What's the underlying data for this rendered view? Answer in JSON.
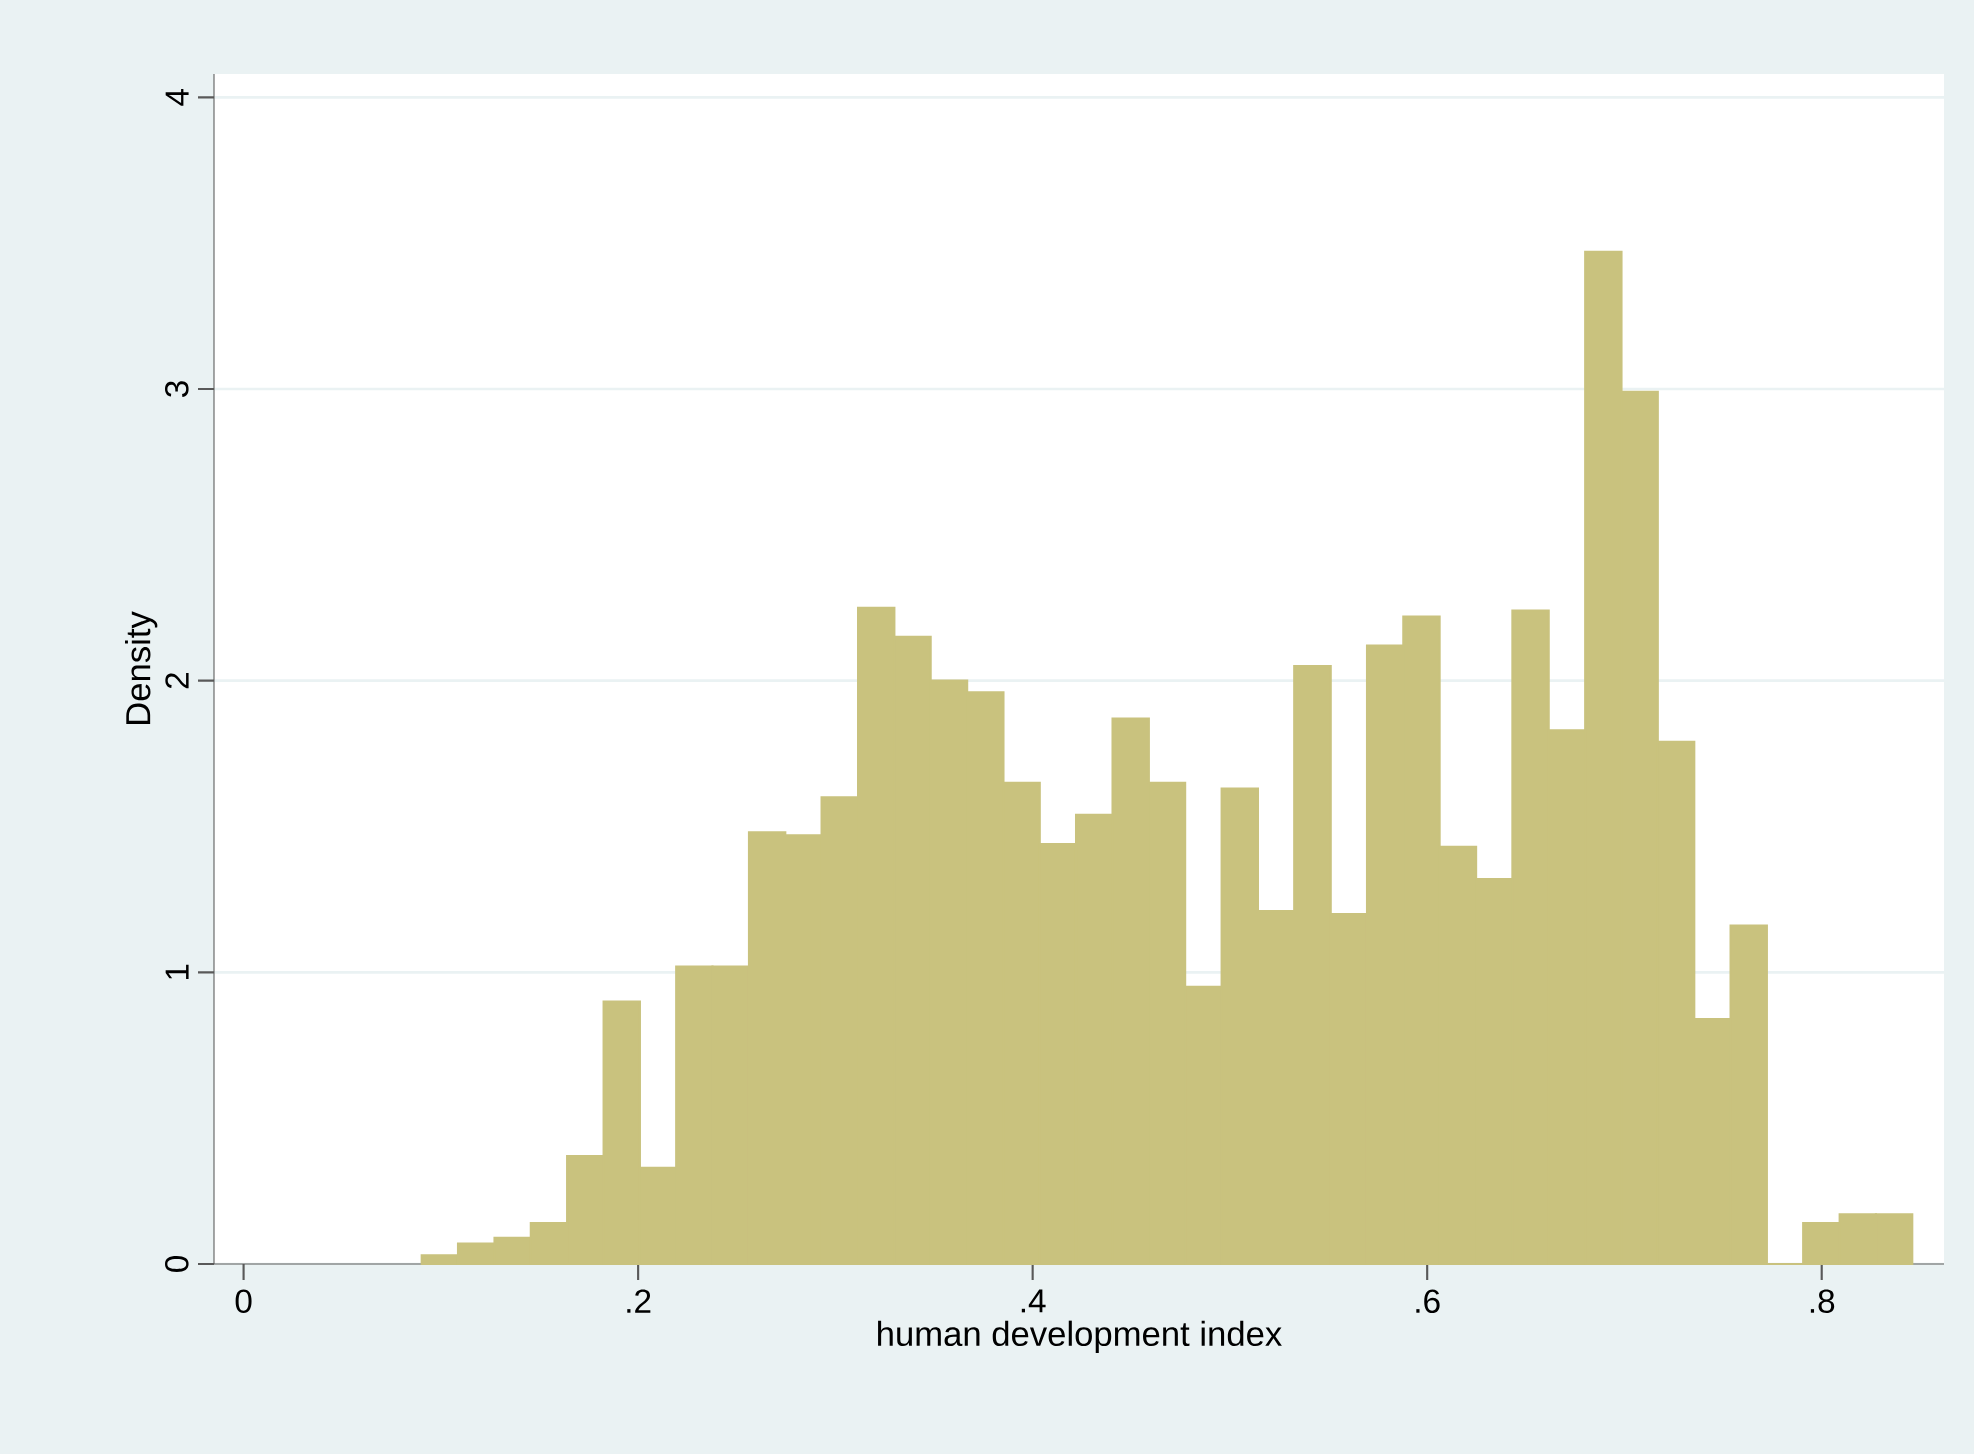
{
  "chart_data": {
    "type": "histogram",
    "xlabel": "human development index",
    "ylabel": "Density",
    "bins": [
      0.0903,
      0.1087,
      0.1272,
      0.1456,
      0.164,
      0.1825,
      0.2009,
      0.2193,
      0.2377,
      0.2562,
      0.2746,
      0.293,
      0.3115,
      0.3299,
      0.3483,
      0.3668,
      0.3852,
      0.4036,
      0.422,
      0.4405,
      0.4589,
      0.4773,
      0.4958,
      0.5142,
      0.5326,
      0.5511,
      0.5695,
      0.5879,
      0.6063,
      0.6248,
      0.6432,
      0.6616,
      0.6801,
      0.6985,
      0.7169,
      0.7354,
      0.7538,
      0.7722,
      0.7906,
      0.8091,
      0.8275,
      0.8459
    ],
    "values": [
      0.03,
      0.07,
      0.09,
      0.14,
      0.37,
      0.9,
      0.33,
      1.02,
      1.02,
      1.48,
      1.47,
      1.6,
      2.25,
      2.15,
      2.0,
      1.96,
      1.65,
      1.44,
      1.54,
      1.87,
      1.65,
      0.95,
      1.63,
      1.21,
      2.05,
      1.2,
      2.12,
      2.22,
      1.43,
      1.32,
      2.24,
      1.83,
      3.47,
      2.99,
      1.79,
      0.84,
      1.16,
      0,
      0.14,
      0.17,
      0.17
    ],
    "color": "#c9c27e",
    "xlim": [
      -0.015,
      0.862
    ],
    "ylim": [
      0,
      4.08
    ],
    "xticks": [
      0,
      {
        "value": 0.2,
        "label": ".2"
      },
      {
        "value": 0.4,
        "label": ".4"
      },
      {
        "value": 0.6,
        "label": ".6"
      },
      {
        "value": 0.8,
        "label": ".8"
      }
    ],
    "yticks": [
      0,
      1,
      2,
      3,
      4
    ],
    "grid": "y"
  }
}
